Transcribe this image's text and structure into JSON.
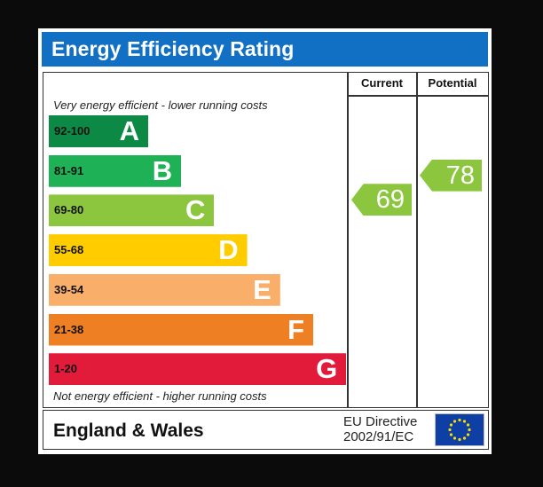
{
  "header": {
    "title": "Energy Efficiency Rating"
  },
  "columns": {
    "current": "Current",
    "potential": "Potential"
  },
  "notes": {
    "top": "Very energy efficient - lower running costs",
    "bottom": "Not energy efficient - higher running costs"
  },
  "chart_data": {
    "type": "bar",
    "title": "Energy Efficiency Rating",
    "categories": [
      "A",
      "B",
      "C",
      "D",
      "E",
      "F",
      "G"
    ],
    "bands": [
      {
        "letter": "A",
        "range": "92-100",
        "color": "#0c8a45"
      },
      {
        "letter": "B",
        "range": "81-91",
        "color": "#1fb155"
      },
      {
        "letter": "C",
        "range": "69-80",
        "color": "#8cc63f"
      },
      {
        "letter": "D",
        "range": "55-68",
        "color": "#ffcc00"
      },
      {
        "letter": "E",
        "range": "39-54",
        "color": "#f9ae6a"
      },
      {
        "letter": "F",
        "range": "21-38",
        "color": "#ee7f22"
      },
      {
        "letter": "G",
        "range": "1-20",
        "color": "#e31b3b"
      }
    ],
    "current": {
      "value": 69,
      "label": "69",
      "band": "C",
      "color": "#8cc63f"
    },
    "potential": {
      "value": 78,
      "label": "78",
      "band": "C",
      "color": "#8cc63f"
    }
  },
  "footer": {
    "region": "England & Wales",
    "directive_line1": "EU Directive",
    "directive_line2": "2002/91/EC",
    "flag_icon": "eu-flag-icon"
  }
}
